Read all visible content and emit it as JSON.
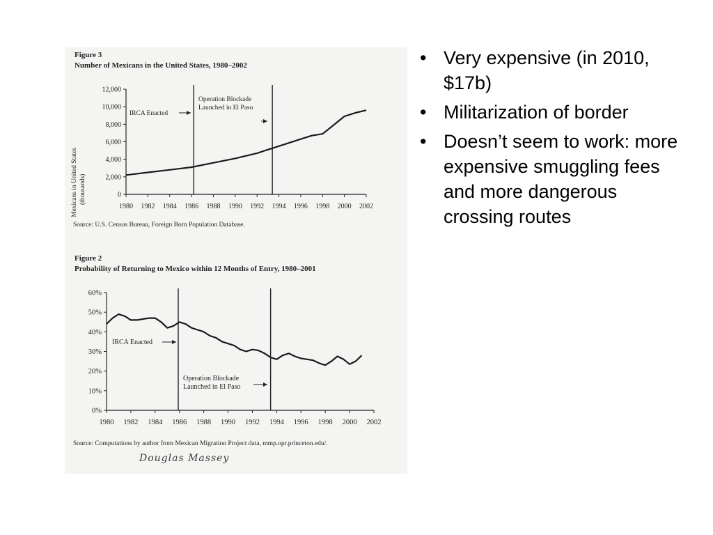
{
  "bullets": [
    "Very expensive (in 2010, $17b)",
    "Militarization of border",
    "Doesn’t seem to work: more expensive smuggling fees and more dangerous crossing routes"
  ],
  "bullet_symbol": "•",
  "signature": "Douglas Massey",
  "chart_data": [
    {
      "type": "line",
      "figure_label": "Figure 3",
      "title": "Number of Mexicans in the United States, 1980–2002",
      "ylabel": "Mexicans in United States (thousands)",
      "xlabel": "",
      "x": [
        1980,
        1982,
        1984,
        1986,
        1988,
        1990,
        1992,
        1994,
        1996,
        1997,
        1998,
        1999,
        2000,
        2001,
        2002
      ],
      "series": [
        {
          "values": [
            2200,
            2500,
            2800,
            3100,
            3600,
            4100,
            4700,
            5500,
            6300,
            6700,
            6900,
            7900,
            8900,
            9300,
            9600
          ]
        }
      ],
      "xticks": [
        "1980",
        "1982",
        "1984",
        "1986",
        "1988",
        "1990",
        "1992",
        "1994",
        "1996",
        "1998",
        "2000",
        "2002"
      ],
      "yticks": [
        "0",
        "2,000",
        "4,000",
        "6,000",
        "8,000",
        "10,000",
        "12,000"
      ],
      "ylim": [
        0,
        12000
      ],
      "xlim": [
        1980,
        2002
      ],
      "vlines": [
        {
          "x": 1986.2,
          "label": [
            "IRCA Enacted"
          ],
          "arrow": "right"
        },
        {
          "x": 1993.4,
          "label": [
            "Operation Blockade",
            "Launched in El Paso"
          ],
          "arrow": "right"
        }
      ],
      "source": "Source: U.S. Census Bureau, Foreign Born Population Database.",
      "grid": false
    },
    {
      "type": "line",
      "figure_label": "Figure 2",
      "title": "Probability of Returning to Mexico within 12 Months of Entry, 1980–2001",
      "ylabel": "",
      "xlabel": "",
      "x": [
        1980,
        1980.5,
        1981,
        1981.5,
        1982,
        1982.5,
        1983,
        1983.5,
        1984,
        1984.5,
        1985,
        1985.5,
        1986,
        1986.5,
        1987,
        1987.5,
        1988,
        1988.5,
        1989,
        1989.5,
        1990,
        1990.5,
        1991,
        1991.5,
        1992,
        1992.5,
        1993,
        1993.5,
        1994,
        1994.5,
        1995,
        1995.5,
        1996,
        1996.5,
        1997,
        1997.5,
        1998,
        1998.5,
        1999,
        1999.5,
        2000,
        2000.5,
        2001
      ],
      "series": [
        {
          "values": [
            44,
            47,
            49,
            48,
            46,
            46,
            46.5,
            47,
            47,
            45,
            42,
            43,
            45,
            44,
            42,
            41,
            40,
            38,
            37,
            35,
            34,
            33,
            31,
            30,
            31,
            30.5,
            29,
            27,
            26,
            28,
            29,
            27.5,
            26.5,
            26,
            25.5,
            24,
            23,
            25,
            27.5,
            26,
            23.5,
            25,
            28
          ]
        }
      ],
      "xticks": [
        "1980",
        "1982",
        "1984",
        "1986",
        "1988",
        "1990",
        "1992",
        "1994",
        "1996",
        "1998",
        "2000",
        "2002"
      ],
      "yticks": [
        "0%",
        "10%",
        "20%",
        "30%",
        "40%",
        "50%",
        "60%"
      ],
      "ylim": [
        0,
        60
      ],
      "xlim": [
        1980,
        2002
      ],
      "vlines": [
        {
          "x": 1985.9,
          "label": [
            "IRCA Enacted"
          ],
          "arrow": "right"
        },
        {
          "x": 1993.5,
          "label": [
            "Operation Blockade",
            "Launched in El Paso"
          ],
          "arrow": "right"
        }
      ],
      "source": "Source: Computations by author from Mexican Migration Project data, mmp.opr.princeton.edu/.",
      "grid": false
    }
  ]
}
